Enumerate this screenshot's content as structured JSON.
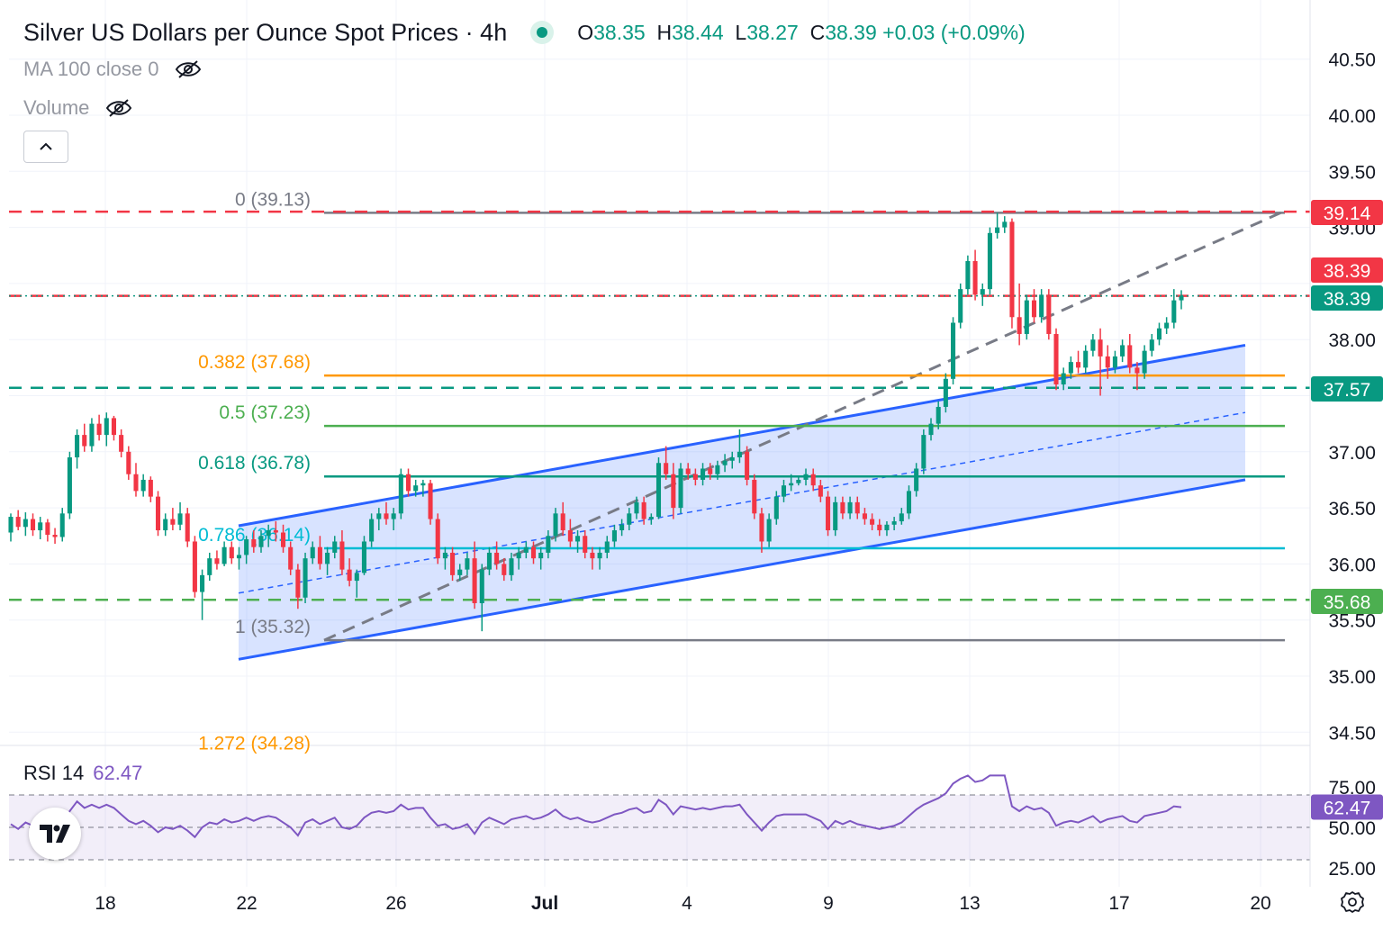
{
  "header": {
    "title": "Silver US Dollars per Ounce Spot Prices · 4h",
    "open_label": "O",
    "open": "38.35",
    "high_label": "H",
    "high": "38.44",
    "low_label": "L",
    "low": "38.27",
    "close_label": "C",
    "close": "38.39",
    "change": "+0.03 (+0.09%)"
  },
  "indicators": {
    "ma": "MA 100 close 0",
    "volume": "Volume",
    "rsi_name": "RSI 14",
    "rsi_value": "62.47"
  },
  "icons": {
    "status": "live-dot-icon",
    "hide_ma": "eye-off-icon",
    "hide_volume": "eye-off-icon",
    "collapse": "chevron-up-icon",
    "logo": "tradingview-logo",
    "settings": "gear-icon"
  },
  "price_axis_ticks": [
    "40.50",
    "40.00",
    "39.50",
    "39.00",
    "38.00",
    "37.00",
    "36.50",
    "36.00",
    "35.50",
    "35.00",
    "34.50"
  ],
  "rsi_axis_ticks": [
    "75.00",
    "50.00",
    "25.00"
  ],
  "time_axis_ticks": [
    "18",
    "22",
    "26",
    "Jul",
    "4",
    "9",
    "13",
    "17",
    "20"
  ],
  "price_tags": [
    {
      "label": "39.14",
      "color": "#f23645"
    },
    {
      "label": "38.39",
      "color": "#f23645"
    },
    {
      "label": "38.39",
      "color": "#089981"
    },
    {
      "label": "37.57",
      "color": "#089981"
    },
    {
      "label": "35.68",
      "color": "#4caf50"
    }
  ],
  "rsi_tag": {
    "label": "62.47",
    "color": "#7e57c2"
  },
  "fib_levels": [
    {
      "label": "0 (39.13)",
      "price": 39.13,
      "color": "#787b86"
    },
    {
      "label": "0.382 (37.68)",
      "price": 37.68,
      "color": "#ff9800"
    },
    {
      "label": "0.5 (37.23)",
      "price": 37.23,
      "color": "#4caf50"
    },
    {
      "label": "0.618 (36.78)",
      "price": 36.78,
      "color": "#089981"
    },
    {
      "label": "0.786 (36.14)",
      "price": 36.14,
      "color": "#00bcd4"
    },
    {
      "label": "1 (35.32)",
      "price": 35.32,
      "color": "#787b86"
    },
    {
      "label": "1.272 (34.28)",
      "price": 34.28,
      "color": "#ff9800"
    }
  ],
  "horizontal_levels": [
    {
      "price": 39.14,
      "style": "dashed",
      "color": "#f23645"
    },
    {
      "price": 38.39,
      "style": "dashed",
      "color": "#f23645"
    },
    {
      "price": 38.39,
      "style": "dotted",
      "color": "#089981"
    },
    {
      "price": 37.57,
      "style": "dashed",
      "color": "#089981"
    },
    {
      "price": 35.68,
      "style": "dashed",
      "color": "#4caf50"
    }
  ],
  "colors": {
    "up": "#089981",
    "down": "#f23645",
    "channel": "#2962ff",
    "rsi": "#7e57c2",
    "trend": "#787b86"
  },
  "chart_data": {
    "type": "candlestick",
    "title": "Silver US Dollars per Ounce Spot Prices · 4h",
    "ylim": [
      34.3,
      40.7
    ],
    "rsi_ylim": [
      22,
      90
    ],
    "rsi_bands": [
      30,
      50,
      70
    ],
    "x_dates": [
      "Jun 18",
      "Jun 22",
      "Jun 26",
      "Jul 1",
      "Jul 4",
      "Jul 9",
      "Jul 13",
      "Jul 17",
      "Jul 20"
    ],
    "candles": [
      [
        36.28,
        36.45,
        36.2,
        36.42
      ],
      [
        36.42,
        36.48,
        36.3,
        36.33
      ],
      [
        36.33,
        36.46,
        36.25,
        36.4
      ],
      [
        36.4,
        36.45,
        36.25,
        36.3
      ],
      [
        36.3,
        36.42,
        36.22,
        36.37
      ],
      [
        36.37,
        36.4,
        36.2,
        36.26
      ],
      [
        36.26,
        36.32,
        36.18,
        36.24
      ],
      [
        36.24,
        36.5,
        36.2,
        36.45
      ],
      [
        36.45,
        37.0,
        36.4,
        36.95
      ],
      [
        36.95,
        37.2,
        36.85,
        37.15
      ],
      [
        37.15,
        37.25,
        37.0,
        37.05
      ],
      [
        37.05,
        37.3,
        37.0,
        37.25
      ],
      [
        37.25,
        37.33,
        37.1,
        37.15
      ],
      [
        37.15,
        37.35,
        37.05,
        37.3
      ],
      [
        37.3,
        37.32,
        37.1,
        37.15
      ],
      [
        37.15,
        37.2,
        36.95,
        37.0
      ],
      [
        37.0,
        37.05,
        36.75,
        36.8
      ],
      [
        36.8,
        36.9,
        36.6,
        36.65
      ],
      [
        36.65,
        36.8,
        36.6,
        36.75
      ],
      [
        36.75,
        36.78,
        36.55,
        36.6
      ],
      [
        36.6,
        36.65,
        36.25,
        36.3
      ],
      [
        36.3,
        36.45,
        36.25,
        36.4
      ],
      [
        36.4,
        36.5,
        36.3,
        36.35
      ],
      [
        36.35,
        36.55,
        36.3,
        36.45
      ],
      [
        36.45,
        36.5,
        36.15,
        36.2
      ],
      [
        36.2,
        36.25,
        35.7,
        35.75
      ],
      [
        35.75,
        35.95,
        35.5,
        35.9
      ],
      [
        35.9,
        36.1,
        35.85,
        36.05
      ],
      [
        36.05,
        36.12,
        35.95,
        36.0
      ],
      [
        36.0,
        36.2,
        35.98,
        36.15
      ],
      [
        36.15,
        36.2,
        36.0,
        36.05
      ],
      [
        36.05,
        36.15,
        35.95,
        36.08
      ],
      [
        36.08,
        36.25,
        36.0,
        36.22
      ],
      [
        36.22,
        36.3,
        36.1,
        36.15
      ],
      [
        36.15,
        36.3,
        36.1,
        36.25
      ],
      [
        36.25,
        36.35,
        36.15,
        36.3
      ],
      [
        36.3,
        36.38,
        36.2,
        36.28
      ],
      [
        36.28,
        36.35,
        36.1,
        36.15
      ],
      [
        36.15,
        36.2,
        35.9,
        35.95
      ],
      [
        35.95,
        36.0,
        35.6,
        35.7
      ],
      [
        35.7,
        36.1,
        35.65,
        36.05
      ],
      [
        36.05,
        36.2,
        36.0,
        36.15
      ],
      [
        36.15,
        36.25,
        35.95,
        36.0
      ],
      [
        36.0,
        36.15,
        35.9,
        36.1
      ],
      [
        36.1,
        36.25,
        36.05,
        36.2
      ],
      [
        36.2,
        36.3,
        35.9,
        35.95
      ],
      [
        35.95,
        36.05,
        35.8,
        35.85
      ],
      [
        35.85,
        35.95,
        35.7,
        35.92
      ],
      [
        35.92,
        36.25,
        35.9,
        36.2
      ],
      [
        36.2,
        36.45,
        36.15,
        36.4
      ],
      [
        36.4,
        36.5,
        36.3,
        36.45
      ],
      [
        36.45,
        36.55,
        36.35,
        36.4
      ],
      [
        36.4,
        36.5,
        36.3,
        36.45
      ],
      [
        36.45,
        36.85,
        36.4,
        36.8
      ],
      [
        36.8,
        36.85,
        36.6,
        36.65
      ],
      [
        36.65,
        36.75,
        36.6,
        36.7
      ],
      [
        36.7,
        36.75,
        36.6,
        36.72
      ],
      [
        36.72,
        36.75,
        36.35,
        36.4
      ],
      [
        36.4,
        36.45,
        36.0,
        36.05
      ],
      [
        36.05,
        36.15,
        35.95,
        36.1
      ],
      [
        36.1,
        36.15,
        35.85,
        35.9
      ],
      [
        35.9,
        36.0,
        35.85,
        35.95
      ],
      [
        35.95,
        36.1,
        35.9,
        36.05
      ],
      [
        36.05,
        36.2,
        35.6,
        35.65
      ],
      [
        35.65,
        36.0,
        35.4,
        35.95
      ],
      [
        35.95,
        36.15,
        35.9,
        36.1
      ],
      [
        36.1,
        36.2,
        35.95,
        36.0
      ],
      [
        36.0,
        36.05,
        35.85,
        35.9
      ],
      [
        35.9,
        36.1,
        35.85,
        36.05
      ],
      [
        36.05,
        36.15,
        35.95,
        36.1
      ],
      [
        36.1,
        36.2,
        36.05,
        36.15
      ],
      [
        36.15,
        36.2,
        36.0,
        36.05
      ],
      [
        36.05,
        36.15,
        35.95,
        36.1
      ],
      [
        36.1,
        36.3,
        36.05,
        36.25
      ],
      [
        36.25,
        36.5,
        36.2,
        36.45
      ],
      [
        36.45,
        36.55,
        36.25,
        36.3
      ],
      [
        36.3,
        36.4,
        36.15,
        36.2
      ],
      [
        36.2,
        36.3,
        36.1,
        36.25
      ],
      [
        36.25,
        36.3,
        36.05,
        36.1
      ],
      [
        36.1,
        36.15,
        35.95,
        36.05
      ],
      [
        36.05,
        36.15,
        35.95,
        36.1
      ],
      [
        36.1,
        36.25,
        36.05,
        36.2
      ],
      [
        36.2,
        36.35,
        36.15,
        36.3
      ],
      [
        36.3,
        36.4,
        36.25,
        36.35
      ],
      [
        36.35,
        36.5,
        36.3,
        36.45
      ],
      [
        36.45,
        36.6,
        36.4,
        36.55
      ],
      [
        36.55,
        36.6,
        36.35,
        36.4
      ],
      [
        36.4,
        36.45,
        36.35,
        36.42
      ],
      [
        36.42,
        36.95,
        36.4,
        36.9
      ],
      [
        36.9,
        37.05,
        36.75,
        36.8
      ],
      [
        36.8,
        36.9,
        36.4,
        36.5
      ],
      [
        36.5,
        36.9,
        36.45,
        36.85
      ],
      [
        36.85,
        36.9,
        36.75,
        36.8
      ],
      [
        36.8,
        36.85,
        36.7,
        36.75
      ],
      [
        36.75,
        36.9,
        36.7,
        36.85
      ],
      [
        36.85,
        36.9,
        36.75,
        36.8
      ],
      [
        36.8,
        36.92,
        36.75,
        36.88
      ],
      [
        36.88,
        36.98,
        36.82,
        36.92
      ],
      [
        36.92,
        37.0,
        36.85,
        36.95
      ],
      [
        36.95,
        37.2,
        36.9,
        37.0
      ],
      [
        37.0,
        37.05,
        36.7,
        36.75
      ],
      [
        36.75,
        36.8,
        36.4,
        36.45
      ],
      [
        36.45,
        36.5,
        36.1,
        36.2
      ],
      [
        36.2,
        36.45,
        36.15,
        36.4
      ],
      [
        36.4,
        36.65,
        36.35,
        36.6
      ],
      [
        36.6,
        36.75,
        36.55,
        36.7
      ],
      [
        36.7,
        36.8,
        36.65,
        36.72
      ],
      [
        36.72,
        36.78,
        36.7,
        36.75
      ],
      [
        36.75,
        36.85,
        36.7,
        36.8
      ],
      [
        36.8,
        36.85,
        36.65,
        36.7
      ],
      [
        36.7,
        36.75,
        36.55,
        36.6
      ],
      [
        36.6,
        36.65,
        36.25,
        36.3
      ],
      [
        36.3,
        36.6,
        36.25,
        36.55
      ],
      [
        36.55,
        36.6,
        36.4,
        36.45
      ],
      [
        36.45,
        36.6,
        36.4,
        36.55
      ],
      [
        36.55,
        36.6,
        36.4,
        36.45
      ],
      [
        36.45,
        36.5,
        36.35,
        36.4
      ],
      [
        36.4,
        36.45,
        36.3,
        36.35
      ],
      [
        36.35,
        36.4,
        36.25,
        36.3
      ],
      [
        36.3,
        36.38,
        36.25,
        36.35
      ],
      [
        36.35,
        36.42,
        36.3,
        36.38
      ],
      [
        36.38,
        36.5,
        36.35,
        36.45
      ],
      [
        36.45,
        36.7,
        36.4,
        36.65
      ],
      [
        36.65,
        36.9,
        36.6,
        36.85
      ],
      [
        36.85,
        37.2,
        36.8,
        37.15
      ],
      [
        37.15,
        37.3,
        37.1,
        37.25
      ],
      [
        37.25,
        37.45,
        37.2,
        37.4
      ],
      [
        37.4,
        37.7,
        37.35,
        37.65
      ],
      [
        37.65,
        38.2,
        37.6,
        38.15
      ],
      [
        38.15,
        38.5,
        38.1,
        38.45
      ],
      [
        38.45,
        38.75,
        38.4,
        38.7
      ],
      [
        38.7,
        38.8,
        38.35,
        38.4
      ],
      [
        38.4,
        38.5,
        38.3,
        38.45
      ],
      [
        38.45,
        39.0,
        38.4,
        38.95
      ],
      [
        38.95,
        39.13,
        38.9,
        39.0
      ],
      [
        39.0,
        39.1,
        38.95,
        39.05
      ],
      [
        39.05,
        39.08,
        38.1,
        38.2
      ],
      [
        38.2,
        38.5,
        37.95,
        38.05
      ],
      [
        38.05,
        38.4,
        38.0,
        38.35
      ],
      [
        38.35,
        38.45,
        38.15,
        38.2
      ],
      [
        38.2,
        38.45,
        38.15,
        38.4
      ],
      [
        38.4,
        38.45,
        38.0,
        38.05
      ],
      [
        38.05,
        38.1,
        37.55,
        37.6
      ],
      [
        37.6,
        37.75,
        37.55,
        37.7
      ],
      [
        37.7,
        37.85,
        37.65,
        37.8
      ],
      [
        37.8,
        37.9,
        37.7,
        37.75
      ],
      [
        37.75,
        37.95,
        37.7,
        37.9
      ],
      [
        37.9,
        38.05,
        37.85,
        38.0
      ],
      [
        38.0,
        38.1,
        37.5,
        37.85
      ],
      [
        37.85,
        37.95,
        37.65,
        37.75
      ],
      [
        37.75,
        37.9,
        37.7,
        37.85
      ],
      [
        37.85,
        38.0,
        37.8,
        37.95
      ],
      [
        37.95,
        38.05,
        37.7,
        37.75
      ],
      [
        37.75,
        37.8,
        37.55,
        37.7
      ],
      [
        37.7,
        37.95,
        37.65,
        37.9
      ],
      [
        37.9,
        38.05,
        37.85,
        38.0
      ],
      [
        38.0,
        38.15,
        37.95,
        38.1
      ],
      [
        38.1,
        38.2,
        38.05,
        38.15
      ],
      [
        38.15,
        38.45,
        38.1,
        38.35
      ],
      [
        38.35,
        38.44,
        38.27,
        38.39
      ]
    ],
    "rsi": [
      52,
      49,
      53,
      51,
      52,
      50,
      48,
      51,
      60,
      66,
      62,
      64,
      62,
      64,
      62,
      58,
      54,
      52,
      54,
      51,
      47,
      50,
      49,
      51,
      48,
      44,
      50,
      53,
      52,
      55,
      53,
      54,
      56,
      54,
      56,
      57,
      56,
      53,
      50,
      45,
      53,
      55,
      52,
      54,
      56,
      50,
      49,
      51,
      56,
      59,
      60,
      59,
      60,
      64,
      61,
      62,
      62,
      56,
      51,
      52,
      49,
      50,
      52,
      46,
      53,
      56,
      54,
      52,
      55,
      56,
      57,
      55,
      56,
      58,
      61,
      57,
      55,
      56,
      54,
      53,
      54,
      56,
      58,
      59,
      61,
      62,
      59,
      60,
      67,
      64,
      58,
      63,
      62,
      61,
      62,
      61,
      62,
      63,
      63,
      64,
      58,
      53,
      48,
      53,
      57,
      58,
      58,
      58,
      58,
      56,
      54,
      49,
      54,
      52,
      54,
      52,
      51,
      50,
      49,
      50,
      51,
      53,
      57,
      61,
      64,
      66,
      68,
      71,
      77,
      80,
      82,
      78,
      79,
      82,
      82,
      82,
      63,
      60,
      63,
      61,
      62,
      59,
      51,
      53,
      54,
      53,
      55,
      57,
      53,
      55,
      56,
      57,
      54,
      53,
      57,
      58,
      59,
      60,
      63,
      62.47
    ]
  }
}
